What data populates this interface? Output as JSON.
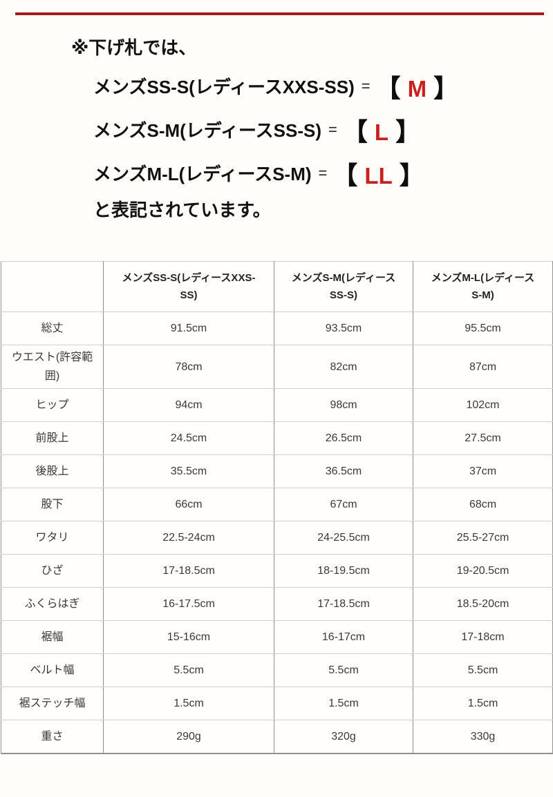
{
  "colors": {
    "rule_red": "#9e1c1c",
    "size_letter_red": "#c9201d",
    "table_border_vertical": "#919191",
    "table_border_horizontal": "#cfcfcf"
  },
  "notice": {
    "intro": "※下げ札では、",
    "lines": [
      {
        "label": "メンズSS-S(レディースXXS-SS)",
        "equals": "=",
        "bracket_open": "【",
        "size": "M",
        "bracket_close": "】"
      },
      {
        "label": "メンズS-M(レディースSS-S)",
        "equals": "=",
        "bracket_open": "【",
        "size": "L",
        "bracket_close": "】"
      },
      {
        "label": "メンズM-L(レディースS-M)",
        "equals": "=",
        "bracket_open": "【",
        "size": "LL",
        "bracket_close": "】"
      }
    ],
    "outro": "と表記されています。"
  },
  "size_table": {
    "columns": [
      "",
      "メンズSS-S(レディースXXS-SS)",
      "メンズS-M(レディースSS-S)",
      "メンズM-L(レディースS-M)"
    ],
    "rows": [
      {
        "label": "総丈",
        "values": [
          "91.5cm",
          "93.5cm",
          "95.5cm"
        ]
      },
      {
        "label": "ウエスト(許容範囲)",
        "values": [
          "78cm",
          "82cm",
          "87cm"
        ]
      },
      {
        "label": "ヒップ",
        "values": [
          "94cm",
          "98cm",
          "102cm"
        ]
      },
      {
        "label": "前股上",
        "values": [
          "24.5cm",
          "26.5cm",
          "27.5cm"
        ]
      },
      {
        "label": "後股上",
        "values": [
          "35.5cm",
          "36.5cm",
          "37cm"
        ]
      },
      {
        "label": "股下",
        "values": [
          "66cm",
          "67cm",
          "68cm"
        ]
      },
      {
        "label": "ワタリ",
        "values": [
          "22.5-24cm",
          "24-25.5cm",
          "25.5-27cm"
        ]
      },
      {
        "label": "ひざ",
        "values": [
          "17-18.5cm",
          "18-19.5cm",
          "19-20.5cm"
        ]
      },
      {
        "label": "ふくらはぎ",
        "values": [
          "16-17.5cm",
          "17-18.5cm",
          "18.5-20cm"
        ]
      },
      {
        "label": "裾幅",
        "values": [
          "15-16cm",
          "16-17cm",
          "17-18cm"
        ]
      },
      {
        "label": "ベルト幅",
        "values": [
          "5.5cm",
          "5.5cm",
          "5.5cm"
        ]
      },
      {
        "label": "裾ステッチ幅",
        "values": [
          "1.5cm",
          "1.5cm",
          "1.5cm"
        ]
      },
      {
        "label": "重さ",
        "values": [
          "290g",
          "320g",
          "330g"
        ]
      }
    ]
  }
}
